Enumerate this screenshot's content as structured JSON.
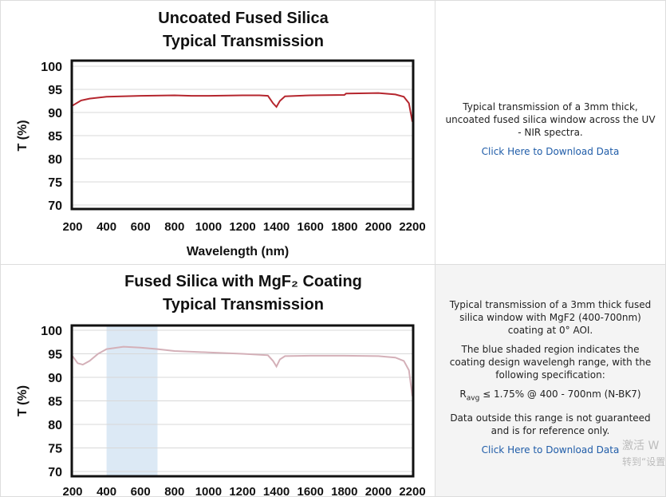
{
  "chart_data": [
    {
      "type": "line",
      "title": "Uncoated Fused Silica",
      "subtitle": "Typical Transmission",
      "xlabel": "Wavelength (nm)",
      "ylabel": "T (%)",
      "x": [
        200,
        250,
        300,
        400,
        600,
        800,
        900,
        1000,
        1200,
        1300,
        1350,
        1380,
        1400,
        1420,
        1450,
        1600,
        1800,
        1810,
        2000,
        2100,
        2150,
        2180,
        2200
      ],
      "values": [
        91.5,
        92.6,
        93.0,
        93.4,
        93.6,
        93.7,
        93.6,
        93.6,
        93.7,
        93.7,
        93.6,
        92.0,
        91.2,
        92.5,
        93.5,
        93.7,
        93.8,
        94.1,
        94.2,
        93.9,
        93.4,
        92.0,
        88.0
      ],
      "color": "#b5262e",
      "xlim": [
        200,
        2200
      ],
      "xticks": [
        200,
        400,
        600,
        800,
        1000,
        1200,
        1400,
        1600,
        1800,
        2000,
        2200
      ],
      "ylim": [
        70,
        100
      ],
      "yticks": [
        70,
        75,
        80,
        85,
        90,
        95,
        100
      ],
      "grid": true
    },
    {
      "type": "line",
      "title": "Fused Silica with MgF₂ Coating",
      "subtitle": "Typical Transmission",
      "ylabel": "T (%)",
      "x": [
        200,
        230,
        260,
        300,
        350,
        400,
        500,
        600,
        700,
        800,
        1000,
        1200,
        1350,
        1380,
        1400,
        1420,
        1450,
        1600,
        1800,
        2000,
        2100,
        2150,
        2180,
        2200
      ],
      "values": [
        94.5,
        93.0,
        92.7,
        93.5,
        95.0,
        96.0,
        96.5,
        96.3,
        96.0,
        95.6,
        95.3,
        95.0,
        94.7,
        93.5,
        92.3,
        93.8,
        94.5,
        94.6,
        94.6,
        94.5,
        94.2,
        93.5,
        91.5,
        86.0
      ],
      "color": "#d4b0b8",
      "shade": [
        400,
        700
      ],
      "shade_color": "#dce9f5",
      "xlim": [
        200,
        2200
      ],
      "xticks": [
        200,
        400,
        600,
        800,
        1000,
        1200,
        1400,
        1600,
        1800,
        2000,
        2200
      ],
      "ylim": [
        70,
        100
      ],
      "yticks": [
        70,
        75,
        80,
        85,
        90,
        95,
        100
      ],
      "grid": true
    }
  ],
  "panels": [
    {
      "paragraphs": [
        "Typical transmission of a 3mm thick, uncoated fused silica window across the UV - NIR spectra."
      ],
      "link": "Click Here to Download Data"
    },
    {
      "paragraphs": [
        "Typical transmission of a 3mm thick fused silica window with MgF2 (400-700nm) coating at 0° AOI.",
        "The blue shaded region indicates the coating design wavelengh range, with the following specification:"
      ],
      "spec": {
        "main": "R",
        "sub": "avg",
        "rest": " ≤ 1.75% @ 400 - 700nm (N-BK7)"
      },
      "note": "Data outside this range is not guaranteed and is for reference only.",
      "link": "Click Here to Download Data"
    }
  ],
  "watermark": [
    "激活 W",
    "转到“设置"
  ]
}
